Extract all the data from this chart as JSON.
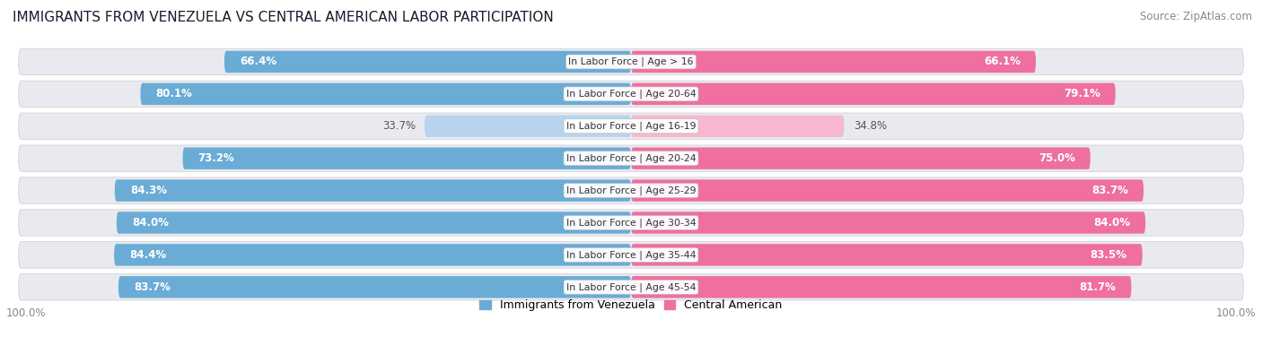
{
  "title": "IMMIGRANTS FROM VENEZUELA VS CENTRAL AMERICAN LABOR PARTICIPATION",
  "source": "Source: ZipAtlas.com",
  "categories": [
    "In Labor Force | Age > 16",
    "In Labor Force | Age 20-64",
    "In Labor Force | Age 16-19",
    "In Labor Force | Age 20-24",
    "In Labor Force | Age 25-29",
    "In Labor Force | Age 30-34",
    "In Labor Force | Age 35-44",
    "In Labor Force | Age 45-54"
  ],
  "venezuela_values": [
    66.4,
    80.1,
    33.7,
    73.2,
    84.3,
    84.0,
    84.4,
    83.7
  ],
  "central_american_values": [
    66.1,
    79.1,
    34.8,
    75.0,
    83.7,
    84.0,
    83.5,
    81.7
  ],
  "venezuela_color": "#6aacd5",
  "venezuela_color_light": "#b8d4ec",
  "central_american_color": "#ee6fa0",
  "central_american_color_light": "#f5b8d0",
  "row_bg_color": "#e8eaf0",
  "max_value": 100.0,
  "bar_height": 0.68,
  "label_fontsize": 8.5,
  "title_fontsize": 11,
  "legend_fontsize": 9,
  "axis_label_fontsize": 8.5,
  "category_fontsize": 7.8
}
